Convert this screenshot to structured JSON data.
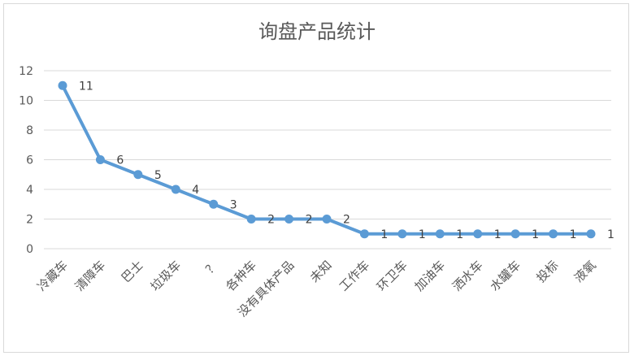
{
  "chart_data": {
    "type": "line",
    "title": "询盘产品统计",
    "categories": [
      "冷藏车",
      "清障车",
      "巴士",
      "垃圾车",
      "？",
      "各种车",
      "没有具体产品",
      "未知",
      "工作车",
      "环卫车",
      "加油车",
      "洒水车",
      "水罐车",
      "投标",
      "液氧"
    ],
    "values": [
      11,
      6,
      5,
      4,
      3,
      2,
      2,
      2,
      1,
      1,
      1,
      1,
      1,
      1,
      1
    ],
    "ylim": [
      0,
      12
    ],
    "yticks": [
      0,
      2,
      4,
      6,
      8,
      10,
      12
    ],
    "grid": true,
    "data_labels": true,
    "legend": "none",
    "colors": {
      "line": "#5b9bd5",
      "grid": "#d9d9d9",
      "text": "#595959"
    }
  }
}
